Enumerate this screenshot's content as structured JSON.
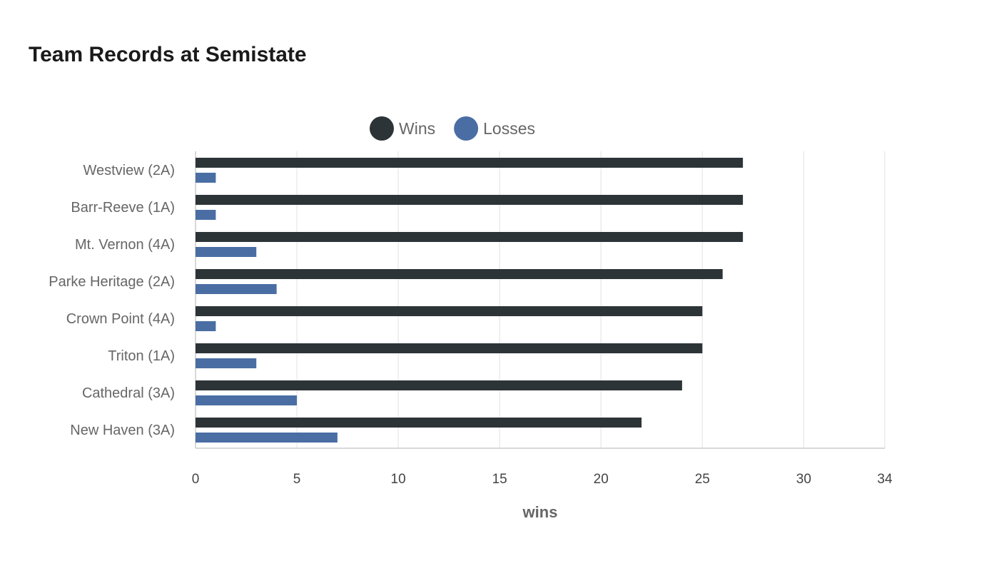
{
  "chart_data": {
    "type": "bar",
    "orientation": "horizontal",
    "title": "Team Records at Semistate",
    "xlabel": "wins",
    "ylabel": "",
    "xlim": [
      0,
      34
    ],
    "xticks": [
      0,
      5,
      10,
      15,
      20,
      25,
      30,
      34
    ],
    "grid": true,
    "legend_position": "top",
    "categories": [
      "Westview (2A)",
      "Barr-Reeve (1A)",
      "Mt. Vernon (4A)",
      "Parke Heritage (2A)",
      "Crown Point (4A)",
      "Triton (1A)",
      "Cathedral (3A)",
      "New Haven (3A)"
    ],
    "series": [
      {
        "name": "Wins",
        "color": "#2d3437",
        "values": [
          27,
          27,
          27,
          26,
          25,
          25,
          24,
          22
        ]
      },
      {
        "name": "Losses",
        "color": "#4a6ea4",
        "values": [
          1,
          1,
          3,
          4,
          1,
          3,
          5,
          7
        ]
      }
    ]
  }
}
